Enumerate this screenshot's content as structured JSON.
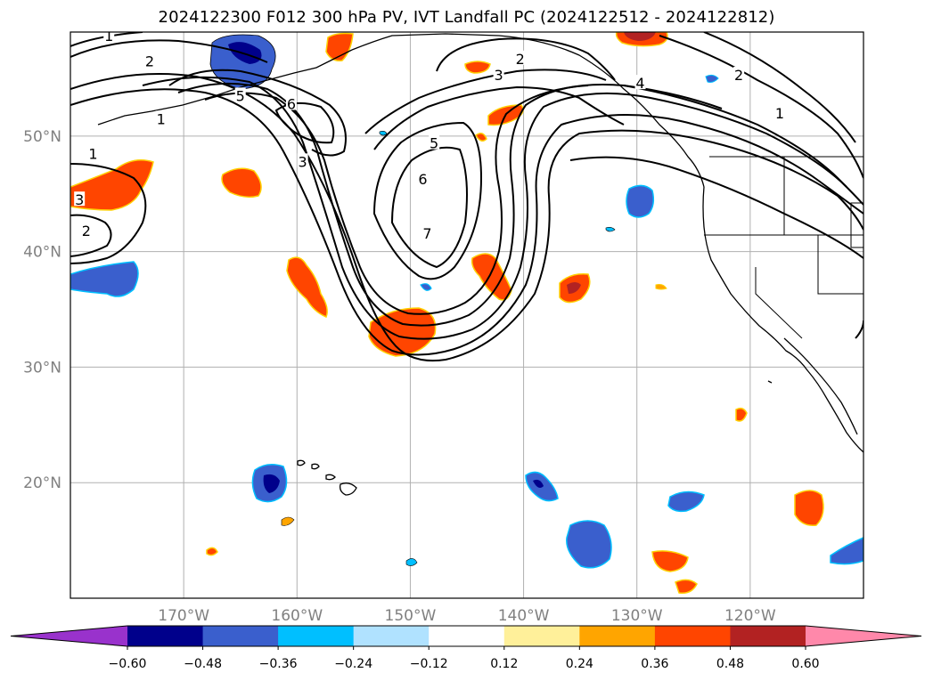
{
  "title": "2024122300 F012 300 hPa PV, IVT Landfall PC (2024122512 - 2024122812)",
  "map": {
    "extent": {
      "lon_min": -180,
      "lon_max": -110,
      "lat_min": 10,
      "lat_max": 59
    },
    "gridlines": true,
    "lon_ticks": [
      {
        "value": -170,
        "label": "170°W"
      },
      {
        "value": -160,
        "label": "160°W"
      },
      {
        "value": -150,
        "label": "150°W"
      },
      {
        "value": -140,
        "label": "140°W"
      },
      {
        "value": -130,
        "label": "130°W"
      },
      {
        "value": -120,
        "label": "120°W"
      }
    ],
    "lat_ticks": [
      {
        "value": 50,
        "label": "50°N"
      },
      {
        "value": 40,
        "label": "40°N"
      },
      {
        "value": 30,
        "label": "30°N"
      },
      {
        "value": 20,
        "label": "20°N"
      }
    ],
    "contour_labels": [
      {
        "text": "1",
        "lon": -176.6,
        "lat": 58.7
      },
      {
        "text": "2",
        "lon": -173.0,
        "lat": 56.5
      },
      {
        "text": "1",
        "lon": -172.0,
        "lat": 51.5
      },
      {
        "text": "5",
        "lon": -165.0,
        "lat": 53.5
      },
      {
        "text": "6",
        "lon": -160.5,
        "lat": 52.8
      },
      {
        "text": "3",
        "lon": -159.5,
        "lat": 47.8
      },
      {
        "text": "1",
        "lon": -178.0,
        "lat": 48.5
      },
      {
        "text": "3",
        "lon": -179.2,
        "lat": 44.5
      },
      {
        "text": "2",
        "lon": -178.6,
        "lat": 41.8
      },
      {
        "text": "2",
        "lon": -140.3,
        "lat": 56.7
      },
      {
        "text": "3",
        "lon": -142.2,
        "lat": 55.3
      },
      {
        "text": "5",
        "lon": -147.9,
        "lat": 49.4
      },
      {
        "text": "6",
        "lon": -148.9,
        "lat": 46.3
      },
      {
        "text": "7",
        "lon": -148.5,
        "lat": 41.6
      },
      {
        "text": "4",
        "lon": -129.7,
        "lat": 54.6
      },
      {
        "text": "2",
        "lon": -121.0,
        "lat": 55.3
      },
      {
        "text": "1",
        "lon": -117.4,
        "lat": 52.0
      }
    ]
  },
  "colorbar": {
    "levels": [
      -0.6,
      -0.48,
      -0.36,
      -0.24,
      -0.12,
      0.12,
      0.24,
      0.36,
      0.48,
      0.6
    ],
    "tick_labels": [
      "−0.60",
      "−0.48",
      "−0.36",
      "−0.24",
      "−0.12",
      "0.12",
      "0.24",
      "0.36",
      "0.48",
      "0.60"
    ],
    "colors": [
      "#9932cc",
      "#00008b",
      "#3a5fcd",
      "#00bfff",
      "#b0e2ff",
      "#ffffff",
      "#fff09a",
      "#ffa500",
      "#ff4500",
      "#b22222",
      "#ff88aa"
    ],
    "extend": "both"
  }
}
